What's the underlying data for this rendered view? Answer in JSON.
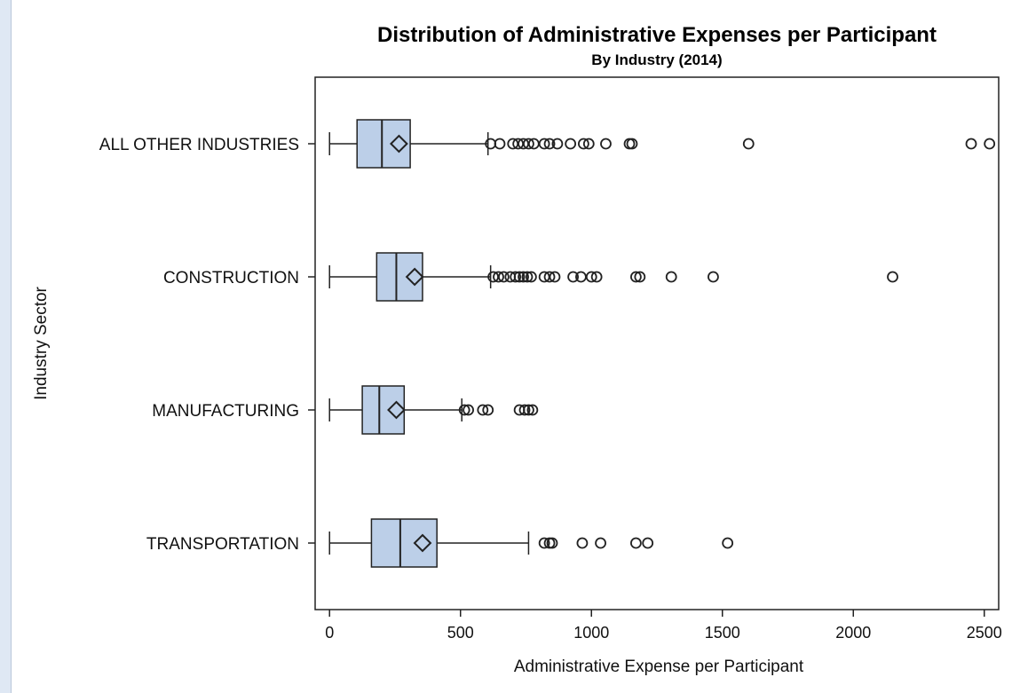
{
  "chart_data": {
    "type": "boxplot",
    "orientation": "horizontal",
    "title": "Distribution of Administrative Expenses per Participant",
    "subtitle": "By Industry (2014)",
    "xlabel": "Administrative Expense per Participant",
    "ylabel": "Industry Sector",
    "xlim": [
      -55,
      2555
    ],
    "xticks": [
      0,
      500,
      1000,
      1500,
      2000,
      2500
    ],
    "grid": false,
    "legend": "none",
    "colors": {
      "box_fill": "#bccfe8",
      "box_stroke": "#222222",
      "marker_stroke": "#222222"
    },
    "series": [
      {
        "category": "ALL OTHER INDUSTRIES",
        "whisker_low": 0,
        "q1": 105,
        "median": 200,
        "q3": 308,
        "whisker_high": 605,
        "mean": 265,
        "outliers": [
          615,
          650,
          700,
          720,
          740,
          760,
          780,
          820,
          840,
          870,
          920,
          970,
          990,
          1055,
          1145,
          1155,
          1600,
          2450,
          2520
        ]
      },
      {
        "category": "CONSTRUCTION",
        "whisker_low": 0,
        "q1": 180,
        "median": 255,
        "q3": 355,
        "whisker_high": 615,
        "mean": 325,
        "outliers": [
          625,
          645,
          665,
          690,
          710,
          725,
          740,
          755,
          770,
          820,
          840,
          860,
          930,
          960,
          1000,
          1020,
          1170,
          1185,
          1305,
          1465,
          2150
        ]
      },
      {
        "category": "MANUFACTURING",
        "whisker_low": 0,
        "q1": 125,
        "median": 190,
        "q3": 285,
        "whisker_high": 505,
        "mean": 255,
        "outliers": [
          515,
          530,
          585,
          605,
          725,
          745,
          760,
          775
        ]
      },
      {
        "category": "TRANSPORTATION",
        "whisker_low": 0,
        "q1": 160,
        "median": 270,
        "q3": 410,
        "whisker_high": 760,
        "mean": 355,
        "outliers": [
          820,
          840,
          850,
          965,
          1035,
          1170,
          1215,
          1520
        ]
      }
    ]
  }
}
